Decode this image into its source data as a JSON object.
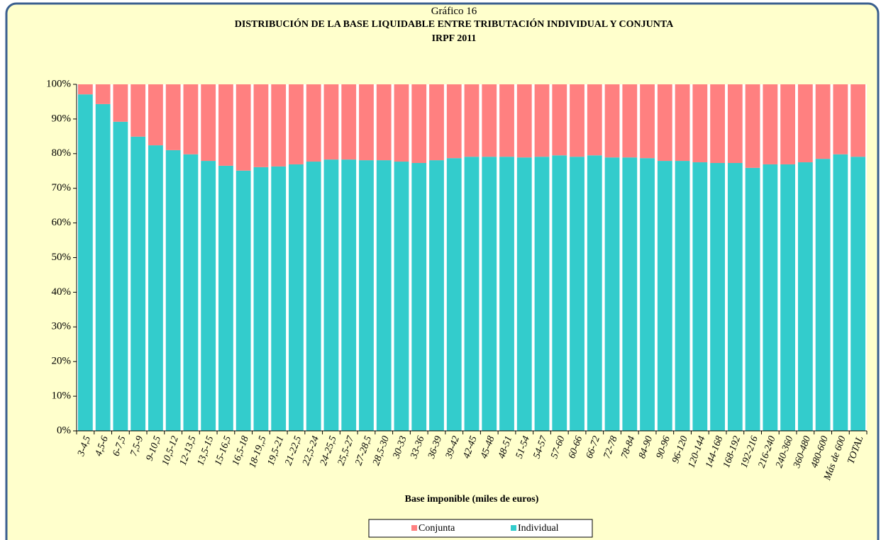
{
  "chart_data": {
    "type": "stacked_bar",
    "label": "Gráfico 16",
    "title": "DISTRIBUCIÓN DE LA BASE LIQUIDABLE ENTRE TRIBUTACIÓN INDIVIDUAL Y CONJUNTA",
    "subtitle": "IRPF 2011",
    "xlabel": "Base imponible (miles de euros)",
    "categories": [
      "3-4,5",
      "4,5-6",
      "6-7,5",
      "7,5-9",
      "9-10,5",
      "10,5-12",
      "12-13,5",
      "13,5-15",
      "15-16,5",
      "16,5-18",
      "18-19,,5",
      "19,5-21",
      "21-22,5",
      "22,5-24",
      "24-25,5",
      "25,5-27",
      "27-28,5",
      "28,5-30",
      "30-33",
      "33-36",
      "36-39",
      "39-42",
      "42-45",
      "45-48",
      "48-51",
      "51-54",
      "54-57",
      "57-60",
      "60-66",
      "66-72",
      "72-78",
      "78-84",
      "84-90",
      "90-96",
      "96-120",
      "120-144",
      "144-168",
      "168-192",
      "192-216",
      "216-240",
      "240-360",
      "360-480",
      "480-600",
      "Más de 600",
      "TOTAL"
    ],
    "series": [
      {
        "name": "Individual",
        "color": "#33cccc",
        "values": [
          97.1,
          94.3,
          89.2,
          84.9,
          82.4,
          81.0,
          79.8,
          77.9,
          76.5,
          75.1,
          76.1,
          76.3,
          76.9,
          77.7,
          78.3,
          78.3,
          78.1,
          78.1,
          77.7,
          77.3,
          78.1,
          78.7,
          79.1,
          79.1,
          79.1,
          78.9,
          79.1,
          79.5,
          79.1,
          79.5,
          78.9,
          78.9,
          78.7,
          77.9,
          77.9,
          77.5,
          77.3,
          77.3,
          75.9,
          76.9,
          76.9,
          77.5,
          78.5,
          79.8,
          79.1
        ]
      },
      {
        "name": "Conjunta",
        "color": "#ff8080",
        "values": [
          2.9,
          5.7,
          10.8,
          15.1,
          17.6,
          19.0,
          20.2,
          22.1,
          23.5,
          24.9,
          23.9,
          23.7,
          23.1,
          22.3,
          21.7,
          21.7,
          21.9,
          21.9,
          22.3,
          22.7,
          21.9,
          21.3,
          20.9,
          20.9,
          20.9,
          21.1,
          20.9,
          20.5,
          20.9,
          20.5,
          21.1,
          21.1,
          21.3,
          22.1,
          22.1,
          22.5,
          22.7,
          22.7,
          24.1,
          23.1,
          23.1,
          22.5,
          21.5,
          20.2,
          20.9
        ]
      }
    ],
    "ylim": [
      0,
      100
    ],
    "yticks": [
      {
        "value": 0,
        "label": "0%"
      },
      {
        "value": 10,
        "label": "10%"
      },
      {
        "value": 20,
        "label": "20%"
      },
      {
        "value": 30,
        "label": "30%"
      },
      {
        "value": 40,
        "label": "40%"
      },
      {
        "value": 50,
        "label": "50%"
      },
      {
        "value": 60,
        "label": "60%"
      },
      {
        "value": 70,
        "label": "70%"
      },
      {
        "value": 80,
        "label": "80%"
      },
      {
        "value": 90,
        "label": "90%"
      },
      {
        "value": 100,
        "label": "100%"
      }
    ],
    "grid": false,
    "legend": "bottom"
  }
}
